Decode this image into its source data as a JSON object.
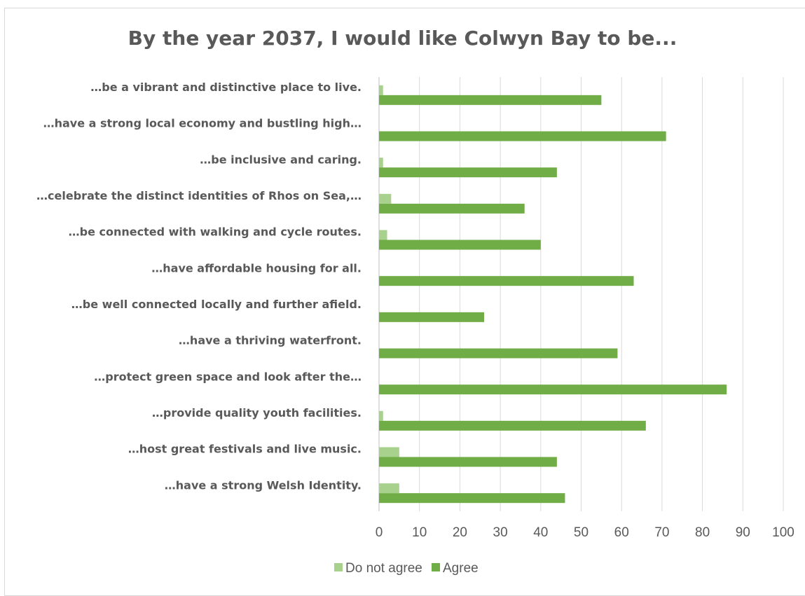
{
  "chart_data": {
    "type": "bar",
    "orientation": "horizontal",
    "title": "By the year 2037, I would like Colwyn Bay to be...",
    "xlabel": "",
    "ylabel": "",
    "xlim": [
      0,
      100
    ],
    "ticks": [
      0,
      10,
      20,
      30,
      40,
      50,
      60,
      70,
      80,
      90,
      100
    ],
    "grid": true,
    "legend_position": "bottom",
    "categories": [
      "…be a vibrant and distinctive place to live.",
      "…have a strong local economy and bustling high…",
      "…be inclusive and caring.",
      "…celebrate the distinct identities of Rhos on Sea,…",
      "…be connected with walking and cycle routes.",
      "…have affordable housing for all.",
      "…be well connected locally and further afield.",
      "…have a thriving waterfront.",
      "…protect green space and look after the…",
      "…provide quality youth facilities.",
      "…host great festivals and live music.",
      "…have a strong Welsh Identity."
    ],
    "series": [
      {
        "name": "Do not agree",
        "color": "#a9d18e",
        "values": [
          1,
          0,
          1,
          3,
          2,
          0,
          0,
          0,
          0,
          1,
          5,
          5
        ]
      },
      {
        "name": "Agree",
        "color": "#70ad47",
        "values": [
          55,
          71,
          44,
          36,
          40,
          63,
          26,
          59,
          86,
          66,
          44,
          46
        ]
      }
    ]
  }
}
